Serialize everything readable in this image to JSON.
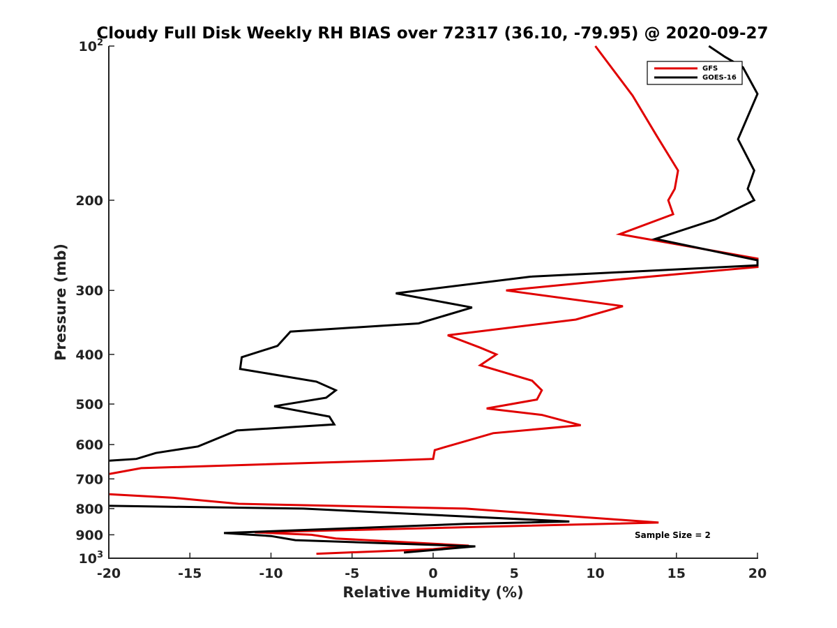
{
  "chart_data": {
    "type": "line",
    "title": "Cloudy Full Disk Weekly RH BIAS over 72317 (36.10, -79.95) @ 2020-09-27",
    "xlabel": "Relative Humidity (%)",
    "ylabel": "Pressure (mb)",
    "xlim": [
      -20,
      20
    ],
    "ylim": [
      100,
      1000
    ],
    "y_scale": "log",
    "y_reversed": true,
    "x_ticks": [
      "-20",
      "-15",
      "-10",
      "-5",
      "0",
      "5",
      "10",
      "15",
      "20"
    ],
    "y_ticks": [
      {
        "value": 100,
        "base": "10",
        "exp": "2"
      },
      {
        "value": 200,
        "label": "200"
      },
      {
        "value": 300,
        "label": "300"
      },
      {
        "value": 400,
        "label": "400"
      },
      {
        "value": 500,
        "label": "500"
      },
      {
        "value": 600,
        "label": "600"
      },
      {
        "value": 700,
        "label": "700"
      },
      {
        "value": 800,
        "label": "800"
      },
      {
        "value": 900,
        "label": "900"
      },
      {
        "value": 1000,
        "base": "10",
        "exp": "3"
      }
    ],
    "grid": false,
    "legend": {
      "position": "top-right",
      "entries": [
        {
          "name": "GFS",
          "color": "#e00000"
        },
        {
          "name": "GOES-16",
          "color": "#000000"
        }
      ]
    },
    "annotation": "Sample Size = 2",
    "series": [
      {
        "name": "GFS",
        "color": "#e00000",
        "points": [
          {
            "p": 100,
            "x": 10.0
          },
          {
            "p": 125,
            "x": 12.3
          },
          {
            "p": 150,
            "x": 13.8
          },
          {
            "p": 175,
            "x": 15.1
          },
          {
            "p": 190,
            "x": 14.9
          },
          {
            "p": 200,
            "x": 14.5
          },
          {
            "p": 213,
            "x": 14.8
          },
          {
            "p": 233,
            "x": 11.5
          },
          {
            "p": 260,
            "x": 20.0
          },
          {
            "p": 270,
            "x": 20.0
          },
          {
            "p": 286,
            "x": 11.2
          },
          {
            "p": 300,
            "x": 4.5
          },
          {
            "p": 322,
            "x": 11.7
          },
          {
            "p": 342,
            "x": 8.8
          },
          {
            "p": 367,
            "x": 0.9
          },
          {
            "p": 388,
            "x": 2.9
          },
          {
            "p": 400,
            "x": 3.9
          },
          {
            "p": 420,
            "x": 2.9
          },
          {
            "p": 450,
            "x": 6.1
          },
          {
            "p": 470,
            "x": 6.7
          },
          {
            "p": 490,
            "x": 6.4
          },
          {
            "p": 510,
            "x": 3.3
          },
          {
            "p": 525,
            "x": 6.7
          },
          {
            "p": 550,
            "x": 9.1
          },
          {
            "p": 570,
            "x": 3.7
          },
          {
            "p": 615,
            "x": 0.1
          },
          {
            "p": 640,
            "x": 0.0
          },
          {
            "p": 645,
            "x": -3.0
          },
          {
            "p": 667,
            "x": -18.0
          },
          {
            "p": 685,
            "x": -20.0
          }
        ]
      },
      {
        "name": "GFS",
        "color": "#e00000",
        "points": [
          {
            "p": 750,
            "x": -20.0
          },
          {
            "p": 762,
            "x": -16.0
          },
          {
            "p": 783,
            "x": -12.0
          },
          {
            "p": 800,
            "x": 2.0
          },
          {
            "p": 852,
            "x": 13.9
          },
          {
            "p": 890,
            "x": -11.0
          },
          {
            "p": 900,
            "x": -7.5
          },
          {
            "p": 915,
            "x": -6.0
          },
          {
            "p": 945,
            "x": 2.2
          },
          {
            "p": 960,
            "x": 0.0
          },
          {
            "p": 980,
            "x": -7.2
          }
        ]
      },
      {
        "name": "GOES-16",
        "color": "#000000",
        "points": [
          {
            "p": 100,
            "x": 17.0
          },
          {
            "p": 105,
            "x": 18.0
          },
          {
            "p": 110,
            "x": 19.1
          },
          {
            "p": 124,
            "x": 20.0
          },
          {
            "p": 152,
            "x": 18.8
          },
          {
            "p": 175,
            "x": 19.8
          },
          {
            "p": 190,
            "x": 19.4
          },
          {
            "p": 200,
            "x": 19.8
          },
          {
            "p": 218,
            "x": 17.4
          },
          {
            "p": 238,
            "x": 13.7
          },
          {
            "p": 262,
            "x": 20.0
          },
          {
            "p": 268,
            "x": 20.0
          },
          {
            "p": 282,
            "x": 6.0
          },
          {
            "p": 304,
            "x": -2.3
          },
          {
            "p": 324,
            "x": 2.4
          },
          {
            "p": 348,
            "x": -0.9
          },
          {
            "p": 361,
            "x": -8.8
          },
          {
            "p": 385,
            "x": -9.6
          },
          {
            "p": 405,
            "x": -11.8
          },
          {
            "p": 427,
            "x": -11.9
          },
          {
            "p": 452,
            "x": -7.2
          },
          {
            "p": 470,
            "x": -6.0
          },
          {
            "p": 486,
            "x": -6.6
          },
          {
            "p": 505,
            "x": -9.8
          },
          {
            "p": 529,
            "x": -6.4
          },
          {
            "p": 548,
            "x": -6.1
          },
          {
            "p": 563,
            "x": -12.1
          },
          {
            "p": 605,
            "x": -14.5
          },
          {
            "p": 623,
            "x": -17.1
          },
          {
            "p": 640,
            "x": -18.3
          },
          {
            "p": 645,
            "x": -20.0
          }
        ]
      },
      {
        "name": "GOES-16",
        "color": "#000000",
        "points": [
          {
            "p": 790,
            "x": -20.0
          },
          {
            "p": 800,
            "x": -8.0
          },
          {
            "p": 848,
            "x": 8.4
          },
          {
            "p": 857,
            "x": 2.0
          },
          {
            "p": 893,
            "x": -12.9
          },
          {
            "p": 905,
            "x": -10.0
          },
          {
            "p": 922,
            "x": -8.5
          },
          {
            "p": 948,
            "x": 2.6
          },
          {
            "p": 975,
            "x": -1.8
          }
        ]
      }
    ]
  }
}
